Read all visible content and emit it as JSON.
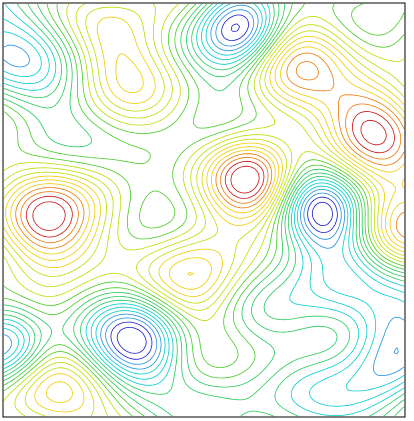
{
  "chart_data": {
    "type": "contour",
    "colors": [
      "#1a1acc",
      "#1e90e0",
      "#00cccc",
      "#22c95a",
      "#44cc22",
      "#bbdd00",
      "#eecc00",
      "#ee7700",
      "#cc1111"
    ]
  }
}
